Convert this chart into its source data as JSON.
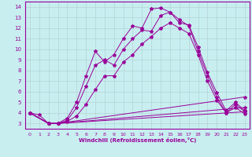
{
  "xlabel": "Windchill (Refroidissement éolien,°C)",
  "xlim": [
    -0.5,
    23.5
  ],
  "ylim": [
    2.5,
    14.5
  ],
  "xticks": [
    0,
    1,
    2,
    3,
    4,
    5,
    6,
    7,
    8,
    9,
    10,
    11,
    12,
    13,
    14,
    15,
    16,
    17,
    18,
    19,
    20,
    21,
    22,
    23
  ],
  "yticks": [
    3,
    4,
    5,
    6,
    7,
    8,
    9,
    10,
    11,
    12,
    13,
    14
  ],
  "bg_color": "#c8eef0",
  "line_color": "#990099",
  "grid_color": "#b0ccd0",
  "lines": [
    {
      "x": [
        0,
        1,
        2,
        3,
        4,
        5,
        6,
        7,
        8,
        9,
        10,
        11,
        12,
        13,
        14,
        15,
        16,
        17,
        18,
        19,
        20,
        21,
        22,
        23
      ],
      "y": [
        4,
        3.8,
        3.0,
        3.0,
        3.5,
        5.0,
        7.5,
        9.8,
        8.8,
        9.5,
        11.0,
        12.2,
        12.0,
        13.8,
        13.9,
        13.5,
        12.5,
        12.3,
        10.2,
        7.8,
        5.9,
        4.2,
        5.0,
        4.2
      ]
    },
    {
      "x": [
        0,
        2,
        3,
        4,
        5,
        6,
        7,
        8,
        9,
        10,
        11,
        12,
        13,
        14,
        15,
        16,
        17,
        18,
        19,
        20,
        21,
        22,
        23
      ],
      "y": [
        4,
        3.0,
        3.0,
        3.3,
        4.5,
        6.5,
        8.5,
        9.0,
        8.5,
        10.0,
        11.0,
        11.8,
        11.7,
        13.2,
        13.5,
        12.8,
        12.2,
        9.8,
        7.5,
        5.5,
        4.0,
        4.8,
        4.1
      ]
    },
    {
      "x": [
        0,
        2,
        3,
        4,
        5,
        6,
        7,
        8,
        9,
        10,
        11,
        12,
        13,
        14,
        15,
        16,
        17,
        18,
        19,
        20,
        21,
        22,
        23
      ],
      "y": [
        4,
        3.0,
        3.0,
        3.2,
        3.7,
        4.8,
        6.2,
        7.5,
        7.5,
        8.8,
        9.5,
        10.5,
        11.2,
        12.0,
        12.5,
        12.0,
        11.5,
        9.5,
        7.0,
        5.2,
        4.0,
        4.5,
        3.9
      ]
    },
    {
      "x": [
        0,
        2,
        3,
        23
      ],
      "y": [
        4,
        3.0,
        3.0,
        5.5
      ]
    },
    {
      "x": [
        0,
        2,
        3,
        23
      ],
      "y": [
        4,
        3.0,
        3.0,
        4.5
      ]
    },
    {
      "x": [
        0,
        2,
        3,
        23
      ],
      "y": [
        4,
        3.0,
        3.0,
        4.1
      ]
    }
  ]
}
